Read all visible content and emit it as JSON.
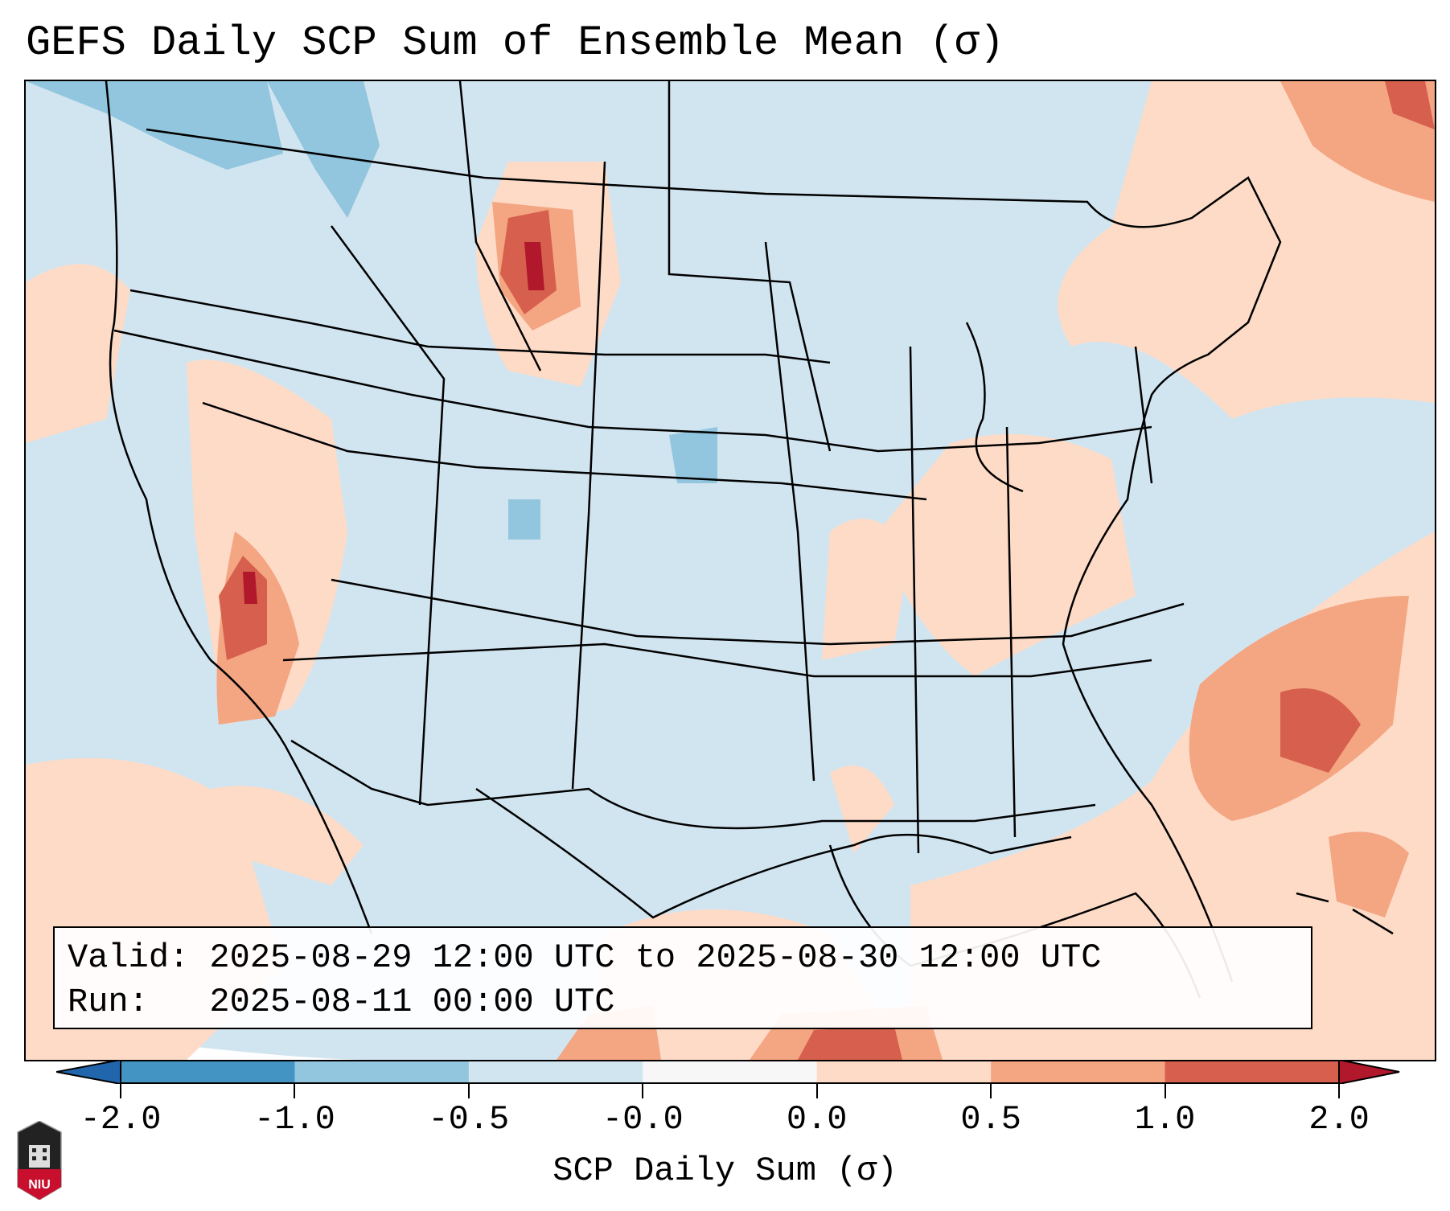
{
  "title": "GEFS Daily SCP Sum of Ensemble Mean (σ)",
  "info": {
    "valid": "Valid: 2025-08-29 12:00 UTC to 2025-08-30 12:00 UTC",
    "run": "Run:   2025-08-11 00:00 UTC"
  },
  "colorbar": {
    "label": "SCP Daily Sum (σ)",
    "ticks": [
      "-2.0",
      "-1.0",
      "-0.5",
      "-0.0",
      "0.0",
      "0.5",
      "1.0",
      "2.0"
    ],
    "under_color": "#2166ac",
    "over_color": "#b2182b",
    "bins": [
      {
        "range": [
          -2.0,
          -1.0
        ],
        "color": "#4393c3"
      },
      {
        "range": [
          -1.0,
          -0.5
        ],
        "color": "#92c5de"
      },
      {
        "range": [
          -0.5,
          -0.0
        ],
        "color": "#d1e5f0"
      },
      {
        "range": [
          -0.0,
          0.0
        ],
        "color": "#f7f7f7"
      },
      {
        "range": [
          0.0,
          0.5
        ],
        "color": "#fddbc7"
      },
      {
        "range": [
          0.5,
          1.0
        ],
        "color": "#f4a582"
      },
      {
        "range": [
          1.0,
          2.0
        ],
        "color": "#d6604d"
      }
    ]
  },
  "logo": {
    "text": "NIU"
  }
}
